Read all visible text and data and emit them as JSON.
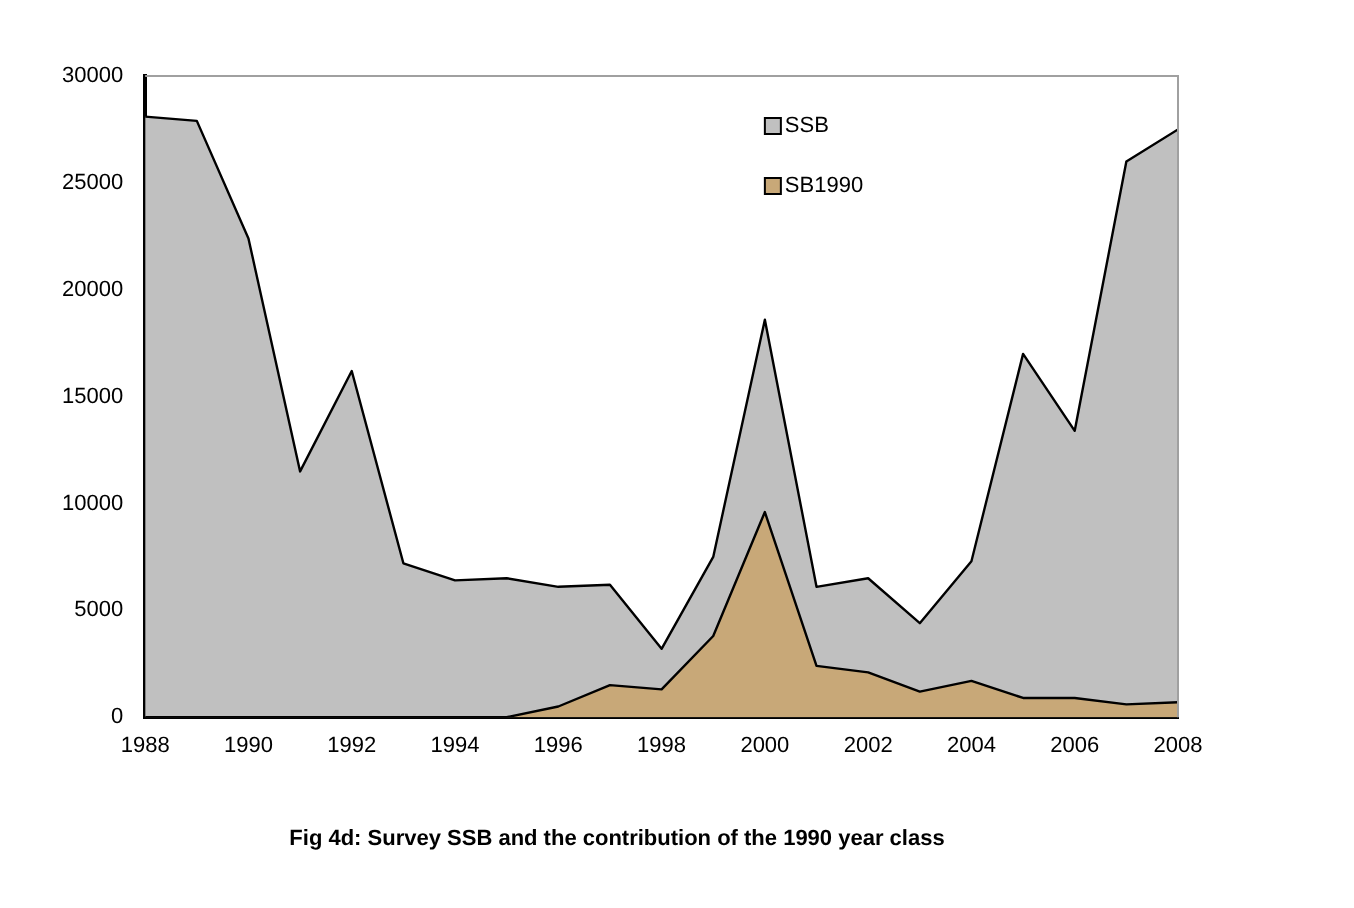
{
  "chart_data": {
    "type": "area",
    "title": "Fig 4d: Survey SSB and the contribution of the 1990 year class",
    "x": [
      1988,
      1989,
      1990,
      1991,
      1992,
      1993,
      1994,
      1995,
      1996,
      1997,
      1998,
      1999,
      2000,
      2001,
      2002,
      2003,
      2004,
      2005,
      2006,
      2007,
      2008
    ],
    "series": [
      {
        "name": "SSB",
        "color": "#c0c0c0",
        "values": [
          28100,
          27900,
          22400,
          11500,
          16200,
          7200,
          6400,
          6500,
          6100,
          6200,
          3200,
          7500,
          18600,
          6100,
          6500,
          4400,
          7300,
          17000,
          13400,
          26000,
          27500
        ]
      },
      {
        "name": "SB1990",
        "color": "#c8a878",
        "values": [
          0,
          0,
          0,
          0,
          0,
          0,
          0,
          0,
          500,
          1500,
          1300,
          3800,
          9600,
          2400,
          2100,
          1200,
          1700,
          900,
          900,
          600,
          700
        ]
      }
    ],
    "xlim": [
      1988,
      2008
    ],
    "xticks": [
      1988,
      1990,
      1992,
      1994,
      1996,
      1998,
      2000,
      2002,
      2004,
      2006,
      2008
    ],
    "ylim": [
      0,
      30000
    ],
    "yticks": [
      0,
      5000,
      10000,
      15000,
      20000,
      25000,
      30000
    ],
    "grid": false,
    "legend": "top right",
    "marker": "none"
  }
}
